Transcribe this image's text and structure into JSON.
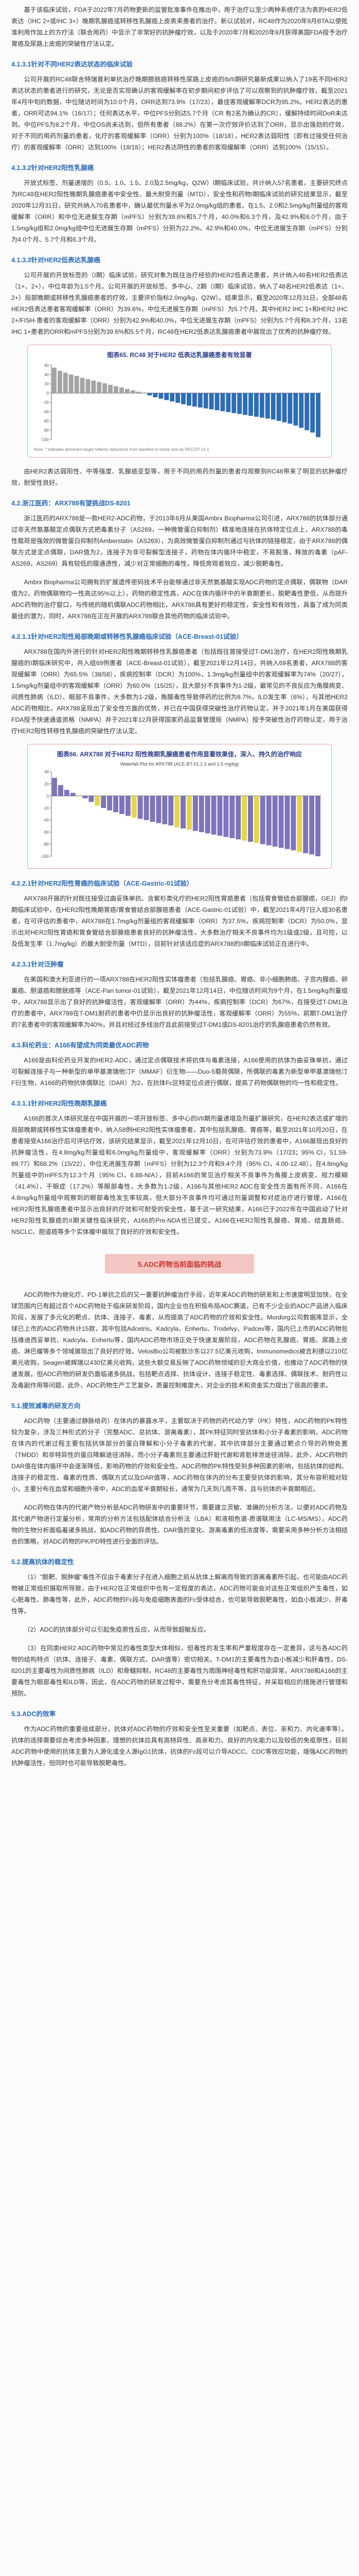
{
  "paragraphs": {
    "p01": "基于该临床试验，FDA于2022年7月药物更新的监管批准事件在推出中，用于治疗以至少两种系统疗法为表的HER2低表达（IHC 2+或IHC 3+）晚期乳腺癌或转移性乳腺癌上皮表来患者的治疗。新以试验对，RC48作为2020年9月BTA以使批准利用作加上的方疗法（联合用药）中显示了非常好的抗肿瘤疗效，以及于2020年7月和2020年9月获得美国FDA授予治疗胃癌及尿路上皮癌的突破性疗法认定。",
    "p02": "公司开展的RC48联合特瑞普利单抗治疗晚期膀胱癌转移性尿路上皮癌的Ib/II期研究最新成果以纳入了19名不同HER2表达状态的患者进行的研究，无论是否实现确认的客观缓解率在初步期间初步评估了可以观察到的抗肿瘤疗效，截至2021年4月中旬的数据，中位随访时间为10.0个月，ORR达到73.9%（17/23），最佳客观缓解率DCR为95.2%。HER2表达的患者，ORR可达94.1%（16/17）；任何表达水平，中位PFS分别达5.7个月（CR 有2名为确认的CR），缓解持续时间DoR未达到。中位PFS为8.2个月，中位OS尚未达到，但所有患者（88.2%）在第一次疗效评价达到了ORR，显示出强劲的疗效，对于不同的用药剂量的患者，化疗的客观缓解率（ORR）分别为100%（18/18），HER2表达弱阳性（即有过接受任何治疗）的客观缓解率（ORR）达到100%（18/18）；HER2表达阴性的患者的客观缓解率（ORR）达到100%（15/15）。",
    "p03": "开放式标签、剂量递增的（0.5、1.0、1.5、2.0及2.5mg/kg，Q2W）I期临床试验，共计纳入57名患者，主要研究终点为RC48在HER2阳性晚期乳腺癌患者中安全性、最大耐受剂量（MTD），安全性和药物I期临床试验的研究结果显示，截至2020年12月31日，研究共纳入70名患者中，确认最优剂量水平为2.0mg/kg组的患者。在1.5、2.0和2.5mg/kg剂量组的客观缓解率（ORR）和中位无进展生存期（mPFS）分别为39.6%和5.7个月，40.0%和6.3个月，及42.9%和6.0个月，由于1.5mg/kg组和2.0mg/kg组中位无进展生存期（mPFS）分别为22.2%、42.9%和40.0%，中位无进展生存期（mPFS）分别为4.0个月、5.7个月和6.3个月。",
    "p04": "公司开展的开放标签的（I期）临床试验，研究对象为既往治疗经验的HER2低表达患者，共计纳入48名HER2低表达（1+、2+），中位年龄为1.5个月。公司开展的开放标签、多中心、2期（I期）临床试验，纳入了48名HER2低表达（1+、2+）局部晚期或转移性乳腺癌患者的疗效，主要评价指标2.0mg/kg，Q2W）。结果显示，截至2020年12月31日，全部48名HER2低表达患者客观缓解率（ORR）为39.6%，中位无进展生存期（mPFS）为5.7个月。其中HER2 IHC 1+和HER2 IHC 2+/FISH-患者的客观缓解率（ORR）分别为42.9%和40.0%，中位无进展生存期（mPFS）分别为5.7个月和6.3个月，13名IHC 1+患者的ORR和mPFS分别为39.6%和5.5个月，RC48在HER2低表达乳腺癌患者中展现出了优秀的抗肿瘤疗效。",
    "p05": "由HER2表达弱阳性、中等强度、乳腺癌亚型等，用于不同的用药剂量的患者均观察到RC48带来了明显的抗肿瘤疗效，耐受性良好。",
    "p06": "浙江医药的ARX788是一款HER2-ADC药物，于2013年6月从美国Ambrx Biopharma公司引进，ARX788的抗体部分通过非天然氨基酸定点偶联方式把毒素分子（AS269，一种微管蛋白抑制剂）精准地连接在抗体特定位点上，ARX788的毒性载荷是强效的微管蛋白抑制剂Amberstatin（AS269），为高效微管蛋白抑制剂通过与抗体的链接稳定，由于ARX788的偶联方式是定点偶联，DAR值为2，连接子为非可裂解型连接子，药物在体内循环中稳定，不易脱落，释放的毒素（pAF-AS269，AS269）具有较低的膜通透性，减少对正常细胞的毒性，降低旁观者效应，减少脱靶毒性。",
    "p07": "Ambrx Biopharma公司拥有的扩展遗传密码技术平台能够通过非天然氨基酸实现ADC药物的定点偶联，偶联物（DAR值为2，药物偶联物均一性高达95%以上），药物的稳定性高，ADC在体内循环中的半衰期更长，脱靶毒性更低，从而提升ADC药物的治疗窗口，与传统的随机偶联ADC药物相比，ARX788具有更好的稳定性，安全性和有效性，具备了成为同类最佳的潜力，同时，ARX788在正在开展的ARX788联合其他药物的临床试验中。",
    "p08": "ARX788在国内外进行的针对HER2阳性晚期转移性乳腺癌患者（包括既往曾接受过T-DM1治疗，在HER2阳性晚期乳腺癌的I期临床研究中，共入组69例患者（ACE-Breast-01试验），截至2021年12月14日，共纳入69名患者，ARX788的客观缓解率（ORR）为65.5%（38/58），疾病控制率（DCR）为100%，1.3mg/kg剂量组中的客观缓解率为74%（20/27），1.5mg/kg剂量组中的客观缓解率（ORR）为60.0%（15/25），且大部分不良事件为1-2级，最常见的不良反应为角膜病变、间质性肺病（ILD）、眼部不良事件，大多数为1-2级，角膜毒性导致停药的比例为8.7%，ILD发生率（6%），与其他HER2 ADC药物相比，ARX788呈现出了安全性方面的优势，并已在中国获得突破性治疗药物认定，并于2021年1月在美国获得FDA授予快速通道资格（NMPA）并于2021年12月获得国家药品监督管理局（NMPA）授予突破性治疗药物认定，用于治疗HER2阳性转移性乳腺癌的突破性疗法认定。",
    "p09": "ARX788开展的针对既往接受过曲妥珠单抗、含紫杉类化疗的HER2阳性胃癌患者（包括胃食管结合部腺癌，GEJ）的I期临床试验中，在HER2阳性晚期胃癌/胃食管结合部腺癌患者（ACE-Gastric-01试验）中，截至2021年4月7日入组30名患者，在可评估的患者中，ARX788在1.7mg/kg剂量组的客观缓解率（ORR）为37.5%，疾病控制率（DCR）为50.0%，显示出对HER2阳性胃癌和胃食管结合部腺癌患者良好的抗肿瘤活性，大多数治疗相关不良事件均为1级或2级，且可控，以及低发生率（1.7mg/kg）的最大耐受剂量（MTD），目前针对该适应症的ARX788的II期临床试验正在进行中。",
    "p10": "在美国和澳大利亚进行的一项ARX788在HER2阳性实体瘤患者（包括乳腺癌、胃癌、非小细胞肺癌、子宫内膜癌、卵巢癌、胆道癌和膀胱癌等（ACE-Pan tumor-01试验），截至2021年12月14日，中位随访时间为9个月，在1.5mg/kg剂量组中，ARX788显示出了良好的抗肿瘤活性，客观缓解率（ORR）为44%，疾病控制率（DCR）为67%，在接受过T-DM1治疗的患者中，ARX788在T-DM1耐药的患者中仍显示出良好的抗肿瘤活性，客观缓解率（ORR）为55%，前期T-DM1治疗的7名患者中的客观缓解率为40%，并且对经过多线治疗且此前接受过T-DM1或DS-8201治疗的乳腺癌患者仍然有效。",
    "p11": "A166是由科伦药业开发的HER2-ADC，通过定点偶联技术将抗体与毒素连接，A166使用的抗体为曲妥珠单抗，通过可裂解连接子与一种新型的单甲基澳瑞他汀F（MMAF）衍生物——Duo-5载荷偶联，所偶联的毒素为新型单甲基澳瑞他汀F衍生物，A166的药物抗体偶联比（DAR）为2，在抗体Fc区特定位点进行偶联，提高了药物偶联物的均一性和稳定性。",
    "p12": "A166的首次人体研究是在中国开展的一项开放标签、多中心的I/II期剂量递增及剂量扩展研究，在HER2表达或扩增的局部晚期或转移性实体瘤患者中，纳入58例HER2阳性实体瘤患者，其中包括乳腺癌、胃癌等，截至2021年10月20日，在患者接受A166治疗后可评估疗效，该研究结果显示，截至2021年12月10日，在可评估疗效的患者中，A166展现出良好的抗肿瘤活性，在4.8mg/kg剂量组和6.0mg/kg剂量组中，客观缓解率（ORR）分别为73.9%（17/23；95% CI，51.59-89.77）和68.2%（15/22），中位无进展生存期（mPFS）分别为12.3个月和9.4个月（95% CI，4.00-12.48），在4.8mg/kg剂量组中的mPFS为12.3个月（95% CI，6.88-N/A），目前A166的常见治疗相关不良事件为角膜上皮病变、视力模糊（41.4%）、干眼症（17.2%）等眼部毒性，大多数为1-2级，A166与其他HER2 ADC在安全性方面有所不同，A166在4.8mg/kg剂量组中观察到的眼部毒性发生率较高，但大部分不良事件均可通过剂量调整和对症治疗进行管理，A166在HER2阳性乳腺癌患者中显示出良好的疗效和可耐受的安全性，基于这一研究结果，A166已于2022年在中国启动了针对HER2阳性乳腺癌的II期关键性临床研究，A166的Pre-NDA也已提交。A166在HER2阳性乳腺癌、胃癌、结直肠癌、NSCLC、胆道癌等多个实体瘤中展现了良好的疗效和安全性。",
    "p13": "ADC药物作为继化疗、PD-1单抗之后的又一重要抗肿瘤治疗手段，近年来ADC药物的研发和上市速度明显加快，在全球范围内已有超过百个ADC药物处于临床研发阶段，国内企业也在积极布局ADC赛道，已有不少企业的ADC产品进入临床阶段，发展了多元化的靶点、抗体、连接子、毒素，从而提高了ADC药物的疗效和安全性。Mordorg公司数据库显示，全球已上市的ADC药物共计15款，其中包括Adcetris、Kadcyla、Enhertu、Trodelvy、Padcev等，国内已上市的ADC药物包括维迪西妥单抗、Kadcyla、Enhertu等，国内ADC药物市场正处于快速发展阶段，ADC药物在乳腺癌、胃癌、尿路上皮癌、淋巴瘤等多个领域展现出了良好的疗效。VelosBio公司被默沙东以27.5亿美元收购，Immunomedics被吉利德以210亿美元收购，Seagen被辉瑞以430亿美元收购，这些大额交易反映了ADC药物领域的巨大商业价值，也推动了ADC药物的快速发展。但ADC药物的研发仍面临诸多挑战，包括靶点选择、抗体设计、连接子稳定性、毒素选择、偶联技术、耐药性以及毒副作用等问题，此外，ADC药物生产工艺复杂，质量控制难度大，对企业的技术和资金实力提出了很高的要求。",
    "p14": "ADC药物（主要通过静脉给药）在体内的暴露水平，主要取决于药物的药代动力学（PK）特性，ADC药物的PK特性较为复杂，涉及三种形式的分子（完整ADC、总抗体、游离毒素），其PK特征同时受抗体和小分子毒素的影响，ADC药物在体内的代谢过程主要包括抗体部分的蛋白降解和小分子毒素的代谢，其中抗体部分主要通过靶点介导的药物处置（TMDD）和非特异性的蛋白降解途径消除，而小分子毒素则主要通过肝脏代谢和肾脏排泄途径消除，此外，ADC药物的DAR值在体内循环中会逐渐降低，影响药物的疗效和安全性。ADC药物的PK特性受到多种因素的影响，包括抗体的结构、连接子的稳定性、毒素的性质、偶联方式以及DAR值等，ADC药物在体内的分布主要受抗体的影响，其分布容积相对较小，主要分布在血浆和细胞外液中，ADC的血浆半衰期较长，通常为几天到几周不等，且与抗体的半衰期相近。",
    "p15": "ADC药物在体内的代谢产物分析是ADC药物研发中的重要环节，需要建立灵敏、准确的分析方法，以便对ADC药物及其代谢产物进行定量分析，常用的分析方法包括配体结合分析法（LBA）和液相色谱-质谱联用法（LC-MS/MS），ADC药物的生物分析面临着诸多挑战，如ADC药物的异质性、DAR值的变化、游离毒素的低浓度等，需要采用多种分析方法相结合的策略，对ADC药物的PK/PD特性进行全面的评估。",
    "p16": "（1）\"脱靶、脱肿瘤\"毒性不仅由于毒素分子在进入细胞之前从抗体上解离而导致的游离毒素所引起，也可能由ADC药物被正常组织摄取所导致，由于HER2在正常组织中也有一定程度的表达，ADC药物可能会对这些正常组织产生毒性，如心脏毒性、肺毒性等，此外，ADC药物的Fc段与免疫细胞表面的Fc受体结合，也可能导致脱靶毒性，如血小板减少、肝毒性等。",
    "p17": "（2）ADC的抗体部分可以引起免疫原性反应，从而导致超敏反应。",
    "p18": "（3）在同类HER2 ADC药物中常见的毒性类型大体相似，但毒性的发生率和严重程度存在一定差异，这与各ADC药物的结构特点（抗体、连接子、毒素、偶联方式、DAR值等）密切相关。T-DM1的主要毒性为血小板减少和肝毒性，DS-8201的主要毒性为间质性肺病（ILD）和骨髓抑制，RC48的主要毒性为周围神经毒性和肝功能异常，ARX788和A166的主要毒性为眼部毒性和ILD等，因此，在ADC药物的研发过程中，需要充分考虑其毒性特征，并采取相应的措施进行管理和预防。",
    "p19": "作为ADC药物的重要组成部分，抗体对ADC药物的疗效和安全性至关重要（如靶点、表位、亲和力、内化速率等）。抗体的选择需要综合考虑多种因素，理想的抗体应具有高特异性、高亲和力、良好的内化能力以及较低的免疫原性，目前ADC药物中使用的抗体主要为人源化或全人源IgG1抗体，抗体的Fc段可以介导ADCC、CDC等效应功能，增强ADC药物的抗肿瘤活性，但同时也可能导致脱靶毒性。"
  },
  "headings": {
    "h1": "4.1.3.1针对不同HER2表达状态的临床试验",
    "h2": "4.1.3.2针对HER2阳性乳腺癌",
    "h3": "4.1.3.3针对HER2低表达乳腺癌",
    "h4": "4.2.浙江医药：ARX788有望挑战DS-8201",
    "h5": "4.2.1.1针对HER2阳性局部晚期或转移性乳腺癌临床试验（ACE-Breast-01试验）",
    "h6": "4.2.2.1针对HER2阳性胃癌的临床试验（ACE-Gastric-01试验）",
    "h7": "4.2.3.1针对泛肿瘤",
    "h8": "4.3.科伦药业：A166有望成为同类最优ADC药物",
    "h9": "4.3.1.1针对HER2阳性晚期乳腺癌",
    "h10": "5.1.提效减毒的研发方向",
    "h11": "5.2.提高抗体的稳定性",
    "h12": "5.3.ADC的效率"
  },
  "banner": "5.ADC药物当前面临的挑战",
  "fig1": {
    "title": "图表65. RC48 对于HER2 低表达乳腺癌患者有效显著",
    "note": "Note: * indicates dominant target reflects reductions from baseline in tumor size by RECIST v1.1"
  },
  "fig2": {
    "title": "图表66. ARX788 对于HER2 阳性晚期乳腺癌患者作用显著效果佳，深入、持久的治疗响应",
    "subtitle": "Waterfall Plot for ARX788 (ACE-BT-01 1.3 and 1.5 mg/kg)"
  },
  "chart_data": [
    {
      "type": "bar",
      "values": [
        55,
        48,
        44,
        40,
        37,
        33,
        30,
        27,
        24,
        21,
        18,
        15,
        12,
        9,
        6,
        3,
        0,
        -5,
        -9,
        -12,
        -15,
        -18,
        -21,
        -24,
        -27,
        -29,
        -31,
        -33,
        -35,
        -37,
        -39,
        -41,
        -43,
        -45,
        -47,
        -49,
        -51,
        -53,
        -55,
        -57,
        -60,
        -63,
        -66,
        -70,
        -75,
        -80,
        -85,
        -95
      ],
      "ylim": [
        -100,
        60
      ],
      "ylabel": "",
      "colors": {
        "pos": "#a4a4a4",
        "neg": "#2e6db4"
      }
    },
    {
      "type": "bar",
      "values": [
        30,
        18,
        10,
        5,
        0,
        -4,
        -10,
        -16,
        -20,
        -24,
        -27,
        -30,
        -33,
        -36,
        -38,
        -40,
        -43,
        -45,
        -47,
        -49,
        -52,
        -54,
        -56,
        -58,
        -60,
        -62,
        -64,
        -66,
        -68,
        -70,
        -72,
        -74,
        -76,
        -78,
        -80,
        -82,
        -84,
        -86,
        -88,
        -90,
        -93,
        -95,
        -97,
        -100
      ],
      "ylim": [
        -100,
        40
      ],
      "colors": {
        "main": "#7d74b9",
        "alt": "#e5d54a"
      }
    }
  ]
}
